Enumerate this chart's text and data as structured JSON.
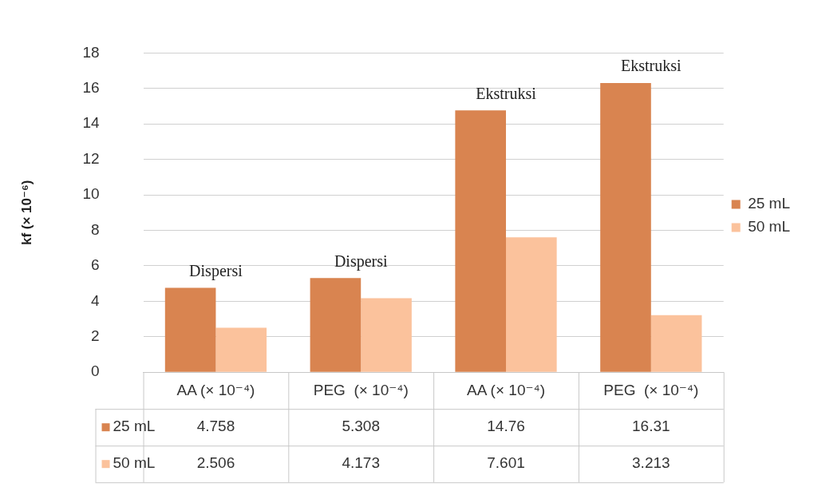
{
  "chart_data": {
    "type": "bar",
    "ylabel": "kf (× 10⁻⁶)",
    "categories": [
      "AA (× 10⁻⁴)",
      "PEG  (× 10⁻⁴)",
      "AA (× 10⁻⁴)",
      "PEG  (× 10⁻⁴)"
    ],
    "series": [
      {
        "name": "25 mL",
        "color": "#d98450",
        "values": [
          4.758,
          5.308,
          14.76,
          16.31
        ]
      },
      {
        "name": "50 mL",
        "color": "#fbc29c",
        "values": [
          2.506,
          4.173,
          7.601,
          3.213
        ]
      }
    ],
    "ylim": [
      0,
      18
    ],
    "yticks": [
      0,
      2,
      4,
      6,
      8,
      10,
      12,
      14,
      16,
      18
    ],
    "grid": "y",
    "legend": "right",
    "data_labels": true,
    "annotations": [
      "Dispersi",
      "Dispersi",
      "Ekstruksi",
      "Ekstruksi"
    ]
  }
}
